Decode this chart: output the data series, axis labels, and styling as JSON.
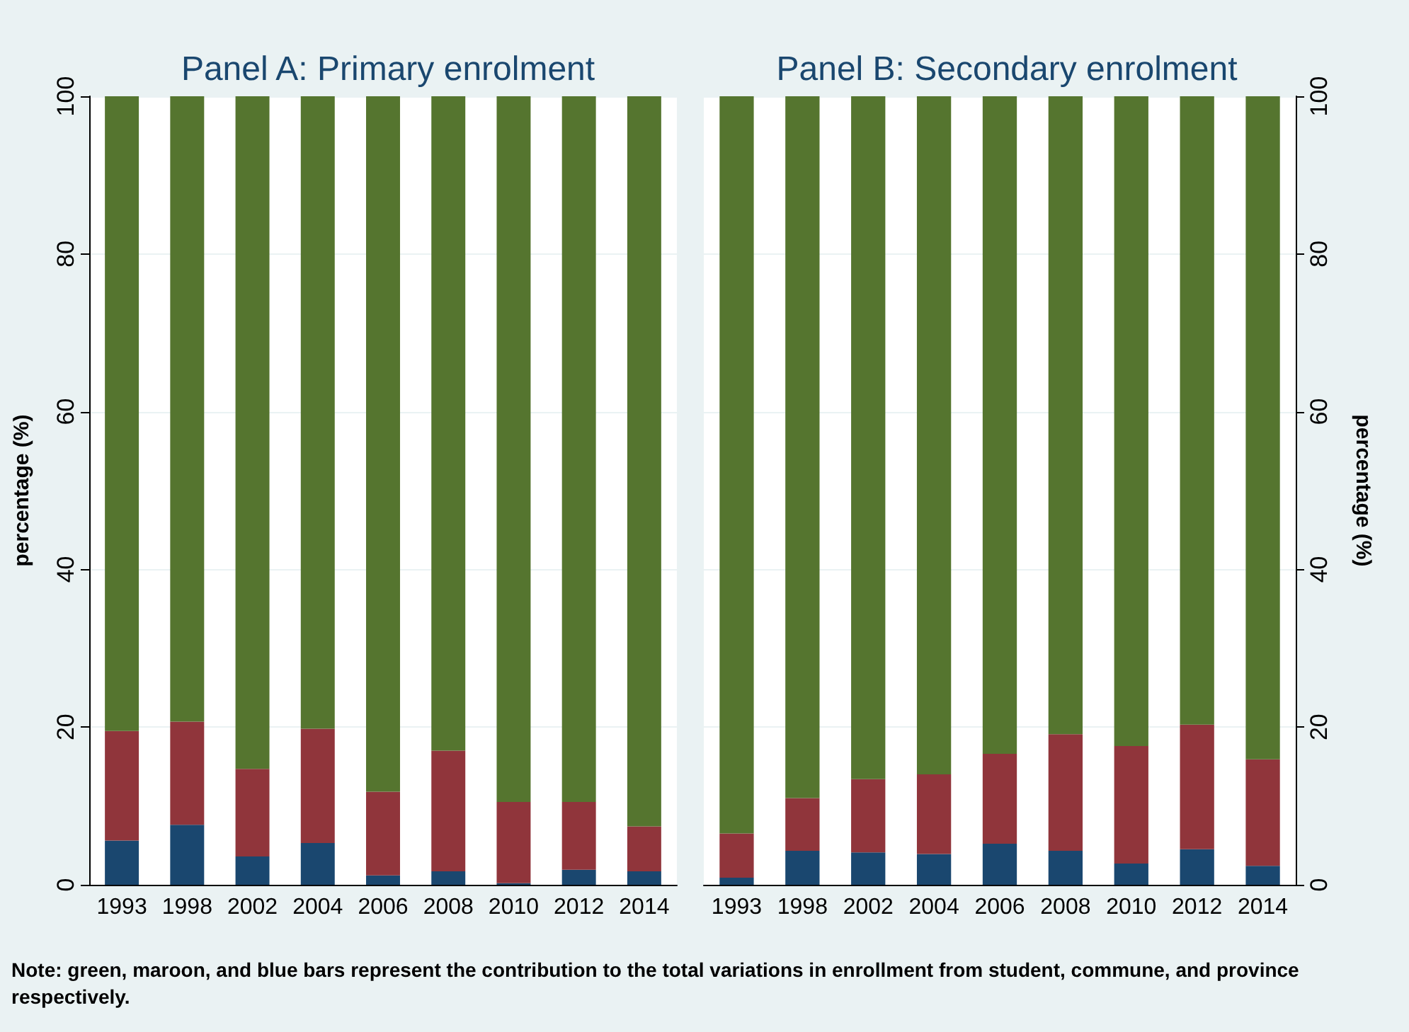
{
  "chart_data": [
    {
      "type": "bar",
      "title": "Panel A: Primary enrolment",
      "ylabel": "percentage (%)",
      "stacked": true,
      "grid": "y",
      "categories": [
        "1993",
        "1998",
        "2002",
        "2004",
        "2006",
        "2008",
        "2010",
        "2012",
        "2014"
      ],
      "ylim": [
        0,
        100
      ],
      "yticks": [
        0,
        20,
        40,
        60,
        80,
        100
      ],
      "series": [
        {
          "color": "#1a476f",
          "values": [
            5.6,
            7.6,
            3.6,
            5.3,
            1.2,
            1.7,
            0.2,
            1.9,
            1.7
          ]
        },
        {
          "color": "#90353b",
          "values": [
            13.9,
            13.1,
            11.1,
            14.5,
            10.6,
            15.3,
            10.3,
            8.6,
            5.7
          ]
        },
        {
          "color": "#55752f",
          "values": [
            80.5,
            79.3,
            85.3,
            80.2,
            88.2,
            83.0,
            89.5,
            89.5,
            92.6
          ]
        }
      ],
      "annotations": [
        "Note: green, maroon, and blue bars represent the contribution to the total variations in enrollment from student, commune, and province respectively."
      ]
    },
    {
      "type": "bar",
      "title": "Panel B: Secondary enrolment",
      "y2label": "percentage (%)",
      "stacked": true,
      "grid": "y",
      "categories": [
        "1993",
        "1998",
        "2002",
        "2004",
        "2006",
        "2008",
        "2010",
        "2012",
        "2014"
      ],
      "y2lim": [
        0,
        100
      ],
      "y2ticks": [
        0,
        20,
        40,
        60,
        80,
        100
      ],
      "series": [
        {
          "color": "#1a476f",
          "axis": "y2",
          "values": [
            0.9,
            4.3,
            4.1,
            3.9,
            5.2,
            4.3,
            2.7,
            4.5,
            2.4
          ]
        },
        {
          "color": "#90353b",
          "axis": "y2",
          "values": [
            5.6,
            6.7,
            9.3,
            10.1,
            11.4,
            14.8,
            14.9,
            15.8,
            13.5
          ]
        },
        {
          "color": "#55752f",
          "axis": "y2",
          "values": [
            93.5,
            89.0,
            86.6,
            86.0,
            83.4,
            80.9,
            82.4,
            79.7,
            84.1
          ]
        }
      ]
    }
  ]
}
